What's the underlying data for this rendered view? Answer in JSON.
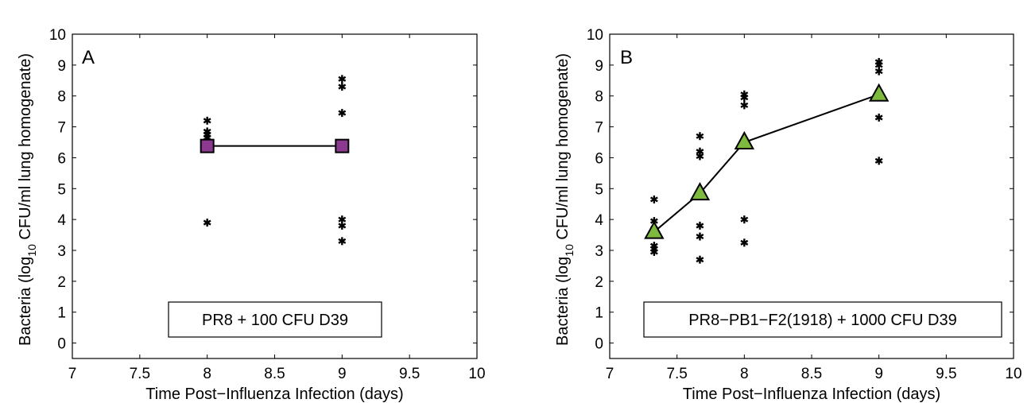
{
  "chart_data": [
    {
      "type": "scatter",
      "panel_label": "A",
      "xlabel": "Time Post−Influenza Infection (days)",
      "ylabel": {
        "pre": "Bacteria (log",
        "sub": "10",
        "post": " CFU/ml lung homogenate)"
      },
      "xlim": [
        7,
        10
      ],
      "ylim": [
        -0.5,
        10
      ],
      "xticks": [
        "7",
        "7.5",
        "8",
        "8.5",
        "9",
        "9.5",
        "10"
      ],
      "yticks": [
        "0",
        "1",
        "2",
        "3",
        "4",
        "5",
        "6",
        "7",
        "8",
        "9",
        "10"
      ],
      "legend_text": "PR8 + 100 CFU D39",
      "marker": "square",
      "marker_color": "#8b3a8f",
      "points": [
        {
          "x": 8,
          "y": 7.2
        },
        {
          "x": 8,
          "y": 6.85
        },
        {
          "x": 8,
          "y": 6.75
        },
        {
          "x": 8,
          "y": 6.65
        },
        {
          "x": 8,
          "y": 6.55
        },
        {
          "x": 8,
          "y": 6.45
        },
        {
          "x": 8,
          "y": 3.9
        },
        {
          "x": 9,
          "y": 8.55
        },
        {
          "x": 9,
          "y": 8.3
        },
        {
          "x": 9,
          "y": 7.45
        },
        {
          "x": 9,
          "y": 6.45
        },
        {
          "x": 9,
          "y": 4.0
        },
        {
          "x": 9,
          "y": 3.8
        },
        {
          "x": 9,
          "y": 3.3
        }
      ],
      "mean": [
        {
          "x": 8,
          "y": 6.38
        },
        {
          "x": 9,
          "y": 6.38
        }
      ]
    },
    {
      "type": "scatter",
      "panel_label": "B",
      "xlabel": "Time Post−Influenza Infection (days)",
      "ylabel": {
        "pre": "Bacteria (log",
        "sub": "10",
        "post": " CFU/ml lung homogenate)"
      },
      "xlim": [
        7,
        10
      ],
      "ylim": [
        -0.5,
        10
      ],
      "xticks": [
        "7",
        "7.5",
        "8",
        "8.5",
        "9",
        "9.5",
        "10"
      ],
      "yticks": [
        "0",
        "1",
        "2",
        "3",
        "4",
        "5",
        "6",
        "7",
        "8",
        "9",
        "10"
      ],
      "legend_text": "PR8−PB1−F2(1918) + 1000 CFU D39",
      "marker": "triangle",
      "marker_color": "#7dba3e",
      "points": [
        {
          "x": 7.33,
          "y": 4.65
        },
        {
          "x": 7.33,
          "y": 3.95
        },
        {
          "x": 7.33,
          "y": 3.7
        },
        {
          "x": 7.33,
          "y": 3.15
        },
        {
          "x": 7.33,
          "y": 3.05
        },
        {
          "x": 7.33,
          "y": 2.95
        },
        {
          "x": 7.67,
          "y": 6.7
        },
        {
          "x": 7.67,
          "y": 6.2
        },
        {
          "x": 7.67,
          "y": 6.05
        },
        {
          "x": 7.67,
          "y": 3.8
        },
        {
          "x": 7.67,
          "y": 3.45
        },
        {
          "x": 7.67,
          "y": 2.7
        },
        {
          "x": 8,
          "y": 8.05
        },
        {
          "x": 8,
          "y": 7.95
        },
        {
          "x": 8,
          "y": 7.7
        },
        {
          "x": 8,
          "y": 4.0
        },
        {
          "x": 8,
          "y": 3.25
        },
        {
          "x": 9,
          "y": 9.1
        },
        {
          "x": 9,
          "y": 9.0
        },
        {
          "x": 9,
          "y": 8.8
        },
        {
          "x": 9,
          "y": 7.3
        },
        {
          "x": 9,
          "y": 5.9
        }
      ],
      "mean": [
        {
          "x": 7.33,
          "y": 3.6
        },
        {
          "x": 7.67,
          "y": 4.85
        },
        {
          "x": 8,
          "y": 6.5
        },
        {
          "x": 9,
          "y": 8.05
        }
      ]
    }
  ]
}
